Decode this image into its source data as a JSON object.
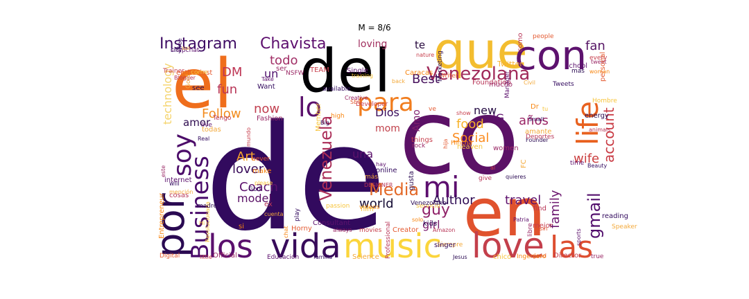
{
  "title": "M = 8/6",
  "words": [
    {
      "text": "de",
      "color": "#320a5e",
      "weight": 100
    },
    {
      "text": "co",
      "color": "#5b1166",
      "weight": 72
    },
    {
      "text": "el",
      "color": "#ef6e1c",
      "weight": 48
    },
    {
      "text": "del",
      "color": "#000004",
      "weight": 46
    },
    {
      "text": "en",
      "color": "#e0522d",
      "weight": 44
    },
    {
      "text": "que",
      "color": "#f3bd2f",
      "weight": 38
    },
    {
      "text": "con",
      "color": "#5d126e",
      "weight": 34
    },
    {
      "text": "love",
      "color": "#c33f4b",
      "weight": 33
    },
    {
      "text": "por",
      "color": "#2a0a52",
      "weight": 32
    },
    {
      "text": "los",
      "color": "#5a0f6d",
      "weight": 27
    },
    {
      "text": "vida",
      "color": "#380b5a",
      "weight": 27
    },
    {
      "text": "music",
      "color": "#fbd53c",
      "weight": 27
    },
    {
      "text": "las",
      "color": "#dd4e30",
      "weight": 25
    },
    {
      "text": "life",
      "color": "#e8611f",
      "weight": 25
    },
    {
      "text": "mi",
      "color": "#5c0e6e",
      "weight": 24
    },
    {
      "text": "para",
      "color": "#f17d1e",
      "weight": 22
    },
    {
      "text": "lo",
      "color": "#5b116c",
      "weight": 21
    },
    {
      "text": "soy",
      "color": "#4c0c69",
      "weight": 21
    },
    {
      "text": "Business",
      "color": "#48096a",
      "weight": 21
    },
    {
      "text": "Venezolana",
      "color": "#a02a5a",
      "weight": 17
    },
    {
      "text": "Venezuela",
      "color": "#ab2e58",
      "weight": 16
    },
    {
      "text": "Media",
      "color": "#e36a29",
      "weight": 16
    },
    {
      "text": "gmail",
      "color": "#520e6c",
      "weight": 15
    },
    {
      "text": "Instagram",
      "color": "#3d0b63",
      "weight": 14
    },
    {
      "text": "Chavista",
      "color": "#5c0d6d",
      "weight": 14
    },
    {
      "text": "account",
      "color": "#c93b44",
      "weight": 14
    },
    {
      "text": "Coach",
      "color": "#5d116d",
      "weight": 13
    },
    {
      "text": "guy",
      "color": "#8f2168",
      "weight": 13
    },
    {
      "text": "lover",
      "color": "#380b5a",
      "weight": 12
    },
    {
      "text": "Social",
      "color": "#fb8b1e",
      "weight": 12
    },
    {
      "text": "años",
      "color": "#9a2565",
      "weight": 12
    },
    {
      "text": "Follow",
      "color": "#f28a1c",
      "weight": 12
    },
    {
      "text": "family",
      "color": "#6b166e",
      "weight": 12
    },
    {
      "text": "Author",
      "color": "#2f0c54",
      "weight": 12
    },
    {
      "text": "wife",
      "color": "#ca3d3e",
      "weight": 12
    },
    {
      "text": "food",
      "color": "#f7b22a",
      "weight": 12
    },
    {
      "text": "world",
      "color": "#140b33",
      "weight": 12
    },
    {
      "text": "travel",
      "color": "#5d116d",
      "weight": 12
    },
    {
      "text": "technology",
      "color": "#f5d46c",
      "weight": 11
    },
    {
      "text": "Art",
      "color": "#f9a52c",
      "weight": 11
    },
    {
      "text": "model",
      "color": "#5a1166",
      "weight": 11
    },
    {
      "text": "Best",
      "color": "#46105c",
      "weight": 11
    },
    {
      "text": "fun",
      "color": "#b83557",
      "weight": 11
    },
    {
      "text": "DM",
      "color": "#be3554",
      "weight": 11
    },
    {
      "text": "now",
      "color": "#c13f4f",
      "weight": 11
    },
    {
      "text": "todo",
      "color": "#a12e66",
      "weight": 11
    },
    {
      "text": "fan",
      "color": "#551464",
      "weight": 11
    },
    {
      "text": "una",
      "color": "#5c126c",
      "weight": 10
    },
    {
      "text": "new",
      "color": "#260c44",
      "weight": 10
    },
    {
      "text": "girl",
      "color": "#7c1c6d",
      "weight": 10
    },
    {
      "text": "Dios",
      "color": "#380b5a",
      "weight": 10
    },
    {
      "text": "IG",
      "color": "#5d116d",
      "weight": 10
    },
    {
      "text": "loving",
      "color": "#a12f5f",
      "weight": 9
    },
    {
      "text": "un",
      "color": "#4c0c6a",
      "weight": 9
    },
    {
      "text": "amor",
      "color": "#2e0b4f",
      "weight": 9
    },
    {
      "text": "mom",
      "color": "#c0404a",
      "weight": 9
    },
    {
      "text": "Amo",
      "color": "#7f1e6c",
      "weight": 9
    },
    {
      "text": "te",
      "color": "#27093e",
      "weight": 9
    },
    {
      "text": "Twitter",
      "color": "#f7b02f",
      "weight": 6
    }
  ],
  "small_words": [
    "Tree",
    "snapchat",
    "ser",
    "nature",
    "Writer",
    "Caracas",
    "training",
    "Marketing",
    "Foundation",
    "Civil",
    "Tweets",
    "school",
    "tweet",
    "every",
    "personal",
    "woman",
    "Hombre",
    "energy",
    "animals",
    "Speaker",
    "reading",
    "sports",
    "true",
    "Director",
    "good",
    "Ingeniero",
    "chico",
    "Jesus",
    "Professional",
    "Science",
    "familia",
    "Educación",
    "Official",
    "little",
    "Digital",
    "Entrepreneur",
    "Hi",
    "madre",
    "cosas",
    "mención",
    "will",
    "internet",
    "este",
    "Trainer",
    "enthusiast",
    "donde",
    "come",
    "see",
    "Blogger",
    "Gold",
    "Want",
    "Take",
    "NSFW",
    "TEAM",
    "SEO",
    "high",
    "Member",
    "Big",
    "Tengo",
    "todas",
    "Real",
    "live",
    "Fashion",
    "mundo",
    "never",
    "make",
    "please",
    "God",
    "ex",
    "cuenta",
    "play",
    "Consultant",
    "always",
    "movies",
    "Creator",
    "solo",
    "servicio",
    "gusta",
    "DESIGNER",
    "más",
    "online",
    "hay",
    "rock",
    "things",
    "hija",
    "Hincha",
    "heaven",
    "Founder",
    "Deportes",
    "amante",
    "Small",
    "Manager",
    "mucho",
    "show",
    "ve",
    "Dr",
    "tu",
    "mas",
    "como",
    "back",
    "available",
    "Single",
    "Creative",
    "Developer",
    "Horny",
    "chat",
    "passion",
    "kids",
    "Amazon",
    "Siempre",
    "singer",
    "Patria",
    "libre",
    "mejor",
    "sin",
    "videos",
    "film",
    "quieres",
    "give",
    "FC",
    "Beauty",
    "time",
    "women",
    "al",
    "people",
    "si",
    "Revolucionaria",
    "Venezolano",
    "find",
    "sur",
    "city"
  ]
}
